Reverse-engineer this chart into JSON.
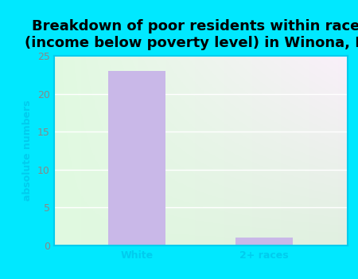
{
  "title": "Breakdown of poor residents within races\n(income below poverty level) in Winona, KS",
  "categories": [
    "White",
    "2+ races"
  ],
  "values": [
    23,
    1
  ],
  "bar_color": "#c9b8e8",
  "ylabel": "absolute numbers",
  "ylim": [
    0,
    25
  ],
  "yticks": [
    0,
    5,
    10,
    15,
    20,
    25
  ],
  "background_outer": "#00e8ff",
  "background_inner_topleft": "#d8edd8",
  "background_inner_bottomright": "#f0f8f0",
  "title_fontsize": 13,
  "axis_label_fontsize": 9,
  "tick_fontsize": 9,
  "tick_color": "#00ccee",
  "ylabel_color": "#00ccee",
  "grid_color": "#ffffff",
  "spine_color": "#00ccee"
}
